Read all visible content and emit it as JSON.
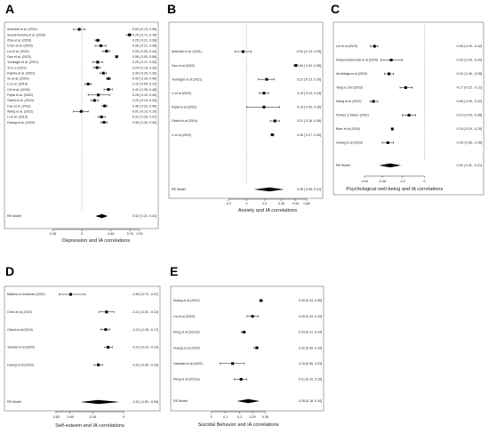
{
  "chart_data": [
    {
      "type": "forest",
      "panel": "A",
      "xlabel": "Depression and IA correlations",
      "xticks": [
        "-0.46",
        "0",
        "0.46",
        "0.76",
        "0.91"
      ],
      "studies": [
        {
          "label": "Andrade et al. (2021)",
          "est": -0.04,
          "lo": -0.13,
          "hi": 0.05,
          "ci_text": "-0.04 [-0.13, 0.05]"
        },
        {
          "label": "Souza-Pereira et al. (2020)",
          "est": 0.75,
          "lo": 0.71,
          "hi": 0.78,
          "ci_text": "0.75 [ 0.71, 0.78]"
        },
        {
          "label": "Zhai et al. (2020)",
          "est": 0.25,
          "lo": 0.21,
          "hi": 0.28,
          "ci_text": "0.25 [ 0.21, 0.28]"
        },
        {
          "label": "Chen et al. (2020)",
          "est": 0.3,
          "lo": 0.21,
          "hi": 0.38,
          "ci_text": "0.30 [ 0.21, 0.38]"
        },
        {
          "label": "Liu et al. (2021)",
          "est": 0.39,
          "lo": 0.33,
          "hi": 0.44,
          "ci_text": "0.39 [ 0.33, 0.44]"
        },
        {
          "label": "Gao et al. (2022)",
          "est": 0.55,
          "lo": 0.53,
          "hi": 0.56,
          "ci_text": "0.55 [ 0.53, 0.56]"
        },
        {
          "label": "Yundagül et al. (2021)",
          "est": 0.25,
          "lo": 0.17,
          "hi": 0.33,
          "ci_text": "0.25 [ 0.17, 0.33]"
        },
        {
          "label": "Yi & Li (2021)",
          "est": 0.24,
          "lo": 0.19,
          "hi": 0.29,
          "ci_text": "0.24 [ 0.19, 0.29]"
        },
        {
          "label": "Kojima et al. (2021)",
          "est": 0.34,
          "lo": 0.29,
          "hi": 0.39,
          "ci_text": "0.34 [ 0.29, 0.39]"
        },
        {
          "label": "Xu et al. (2020)",
          "est": 0.42,
          "lo": 0.39,
          "hi": 0.45,
          "ci_text": "0.42 [ 0.39, 0.45]"
        },
        {
          "label": "Li et al. (2019)",
          "est": 0.1,
          "lo": 0.05,
          "hi": 0.15,
          "ci_text": "0.10 [ 0.05, 0.15]"
        },
        {
          "label": "Chi et al. (2019)",
          "est": 0.42,
          "lo": 0.35,
          "hi": 0.48,
          "ci_text": "0.42 [ 0.35, 0.48]"
        },
        {
          "label": "Fujita et al. (2022)",
          "est": 0.26,
          "lo": 0.1,
          "hi": 0.44,
          "ci_text": "0.26 [ 0.10, 0.44]"
        },
        {
          "label": "Obeid et al. (2019)",
          "est": 0.2,
          "lo": 0.14,
          "hi": 0.26,
          "ci_text": "0.20 [ 0.14, 0.26]"
        },
        {
          "label": "Cao et al. (2011)",
          "est": 0.36,
          "lo": 0.32,
          "hi": 0.4,
          "ci_text": "0.36 [ 0.32, 0.40]"
        },
        {
          "label": "Wang et al. (2022)",
          "est": -0.01,
          "lo": -0.13,
          "hi": 0.1,
          "ci_text": "-0.01 [-0.13, 0.10]"
        },
        {
          "label": "Li et al. (2019)",
          "est": 0.31,
          "lo": 0.26,
          "hi": 0.37,
          "ci_text": "0.31 [ 0.26, 0.37]"
        },
        {
          "label": "Huang et al. (2023)",
          "est": 0.35,
          "lo": 0.3,
          "hi": 0.4,
          "ci_text": "0.35 [ 0.30, 0.40]"
        }
      ],
      "summary": {
        "label": "RE Model",
        "est": 0.32,
        "lo": 0.21,
        "hi": 0.41,
        "ci_text": "0.32 [ 0.21, 0.41]"
      }
    },
    {
      "type": "forest",
      "panel": "B",
      "xlabel": "Anxiety and IA correlations",
      "xticks": [
        "-0.2",
        "0",
        "0.2",
        "0.38",
        "0.54",
        "0.66"
      ],
      "studies": [
        {
          "label": "Andrade et al. (2021)",
          "est": -0.04,
          "lo": -0.13,
          "hi": 0.05,
          "ci_text": "-0.04 [-0.13, 0.05]"
        },
        {
          "label": "Gao et al (2022)",
          "est": 0.54,
          "lo": 0.52,
          "hi": 0.55,
          "ci_text": "0.54 [ 0.52, 0.55]"
        },
        {
          "label": "Yundagül et al (2021)",
          "est": 0.22,
          "lo": 0.13,
          "hi": 0.3,
          "ci_text": "0.22 [ 0.13, 0.30]"
        },
        {
          "label": "Li et al (2019)",
          "est": 0.19,
          "lo": 0.14,
          "hi": 0.24,
          "ci_text": "0.19 [ 0.14, 0.24]"
        },
        {
          "label": "Fujita et al (2022)",
          "est": 0.19,
          "lo": 0.0,
          "hi": 0.36,
          "ci_text": "0.19 [ 0.00, 0.36]"
        },
        {
          "label": "Obeid et al (2019)",
          "est": 0.31,
          "lo": 0.26,
          "hi": 0.36,
          "ci_text": "0.31 [ 0.26, 0.36]"
        },
        {
          "label": "Li et al (2019)",
          "est": 0.28,
          "lo": 0.27,
          "hi": 0.3,
          "ci_text": "0.28 [ 0.27, 0.30]"
        }
      ],
      "summary": {
        "label": "RE Model",
        "est": 0.25,
        "lo": 0.08,
        "hi": 0.41,
        "ci_text": "0.25 [ 0.08, 0.41]"
      }
    },
    {
      "type": "forest",
      "panel": "C",
      "xlabel": "Psychological well-being and IA correlations",
      "xticks": [
        "-0.54",
        "-0.38",
        "-0.2",
        "0"
      ],
      "studies": [
        {
          "label": "Liu et al (2023)",
          "est": -0.45,
          "lo": -0.49,
          "hi": -0.42,
          "ci_text": "-0.45 [-0.49, -0.42]"
        },
        {
          "label": "Khasmohammadi et al (2020)",
          "est": -0.3,
          "lo": -0.39,
          "hi": -0.2,
          "ci_text": "-0.30 [-0.39, -0.20]"
        },
        {
          "label": "Arrivillaga et al (2022)",
          "est": -0.32,
          "lo": -0.36,
          "hi": -0.28,
          "ci_text": "-0.32 [-0.36, -0.28]"
        },
        {
          "label": "Yang & Zhu (2023)",
          "est": -0.17,
          "lo": -0.22,
          "hi": -0.11,
          "ci_text": "-0.17 [-0.22, -0.11]"
        },
        {
          "label": "Wang et al (2022)",
          "est": -0.46,
          "lo": -0.49,
          "hi": -0.42,
          "ci_text": "-0.46 [-0.49, -0.42]"
        },
        {
          "label": "Pontes & Macur (2021)",
          "est": -0.14,
          "lo": -0.2,
          "hi": -0.08,
          "ci_text": "-0.14 [-0.20, -0.08]"
        },
        {
          "label": "Boer et al (2020)",
          "est": -0.29,
          "lo": -0.29,
          "hi": -0.29,
          "ci_text": "-0.29 [-0.29, -0.29]"
        },
        {
          "label": "Huang et al (2023)",
          "est": -0.33,
          "lo": -0.38,
          "hi": -0.28,
          "ci_text": "-0.33 [-0.38, -0.28]"
        }
      ],
      "summary": {
        "label": "RE Model",
        "est": -0.31,
        "lo": -0.41,
        "hi": -0.21,
        "ci_text": "-0.31 [-0.41, -0.21]"
      }
    },
    {
      "type": "forest",
      "panel": "D",
      "xlabel": "Self-esteem and IA correlations",
      "xticks": [
        "-0.83",
        "-0.66",
        "-0.38",
        "0"
      ],
      "studies": [
        {
          "label": "Mathew & Krishnan (2020)",
          "est": -0.65,
          "lo": -0.79,
          "hi": -0.47,
          "ci_text": "-0.65 [-0.79, -0.47]"
        },
        {
          "label": "Chen et al (2020)",
          "est": -0.21,
          "lo": -0.3,
          "hi": -0.12,
          "ci_text": "-0.21 [-0.30, -0.12]"
        },
        {
          "label": "Obeid et al (2019)",
          "est": -0.22,
          "lo": -0.28,
          "hi": -0.17,
          "ci_text": "-0.22 [-0.28, -0.17]"
        },
        {
          "label": "Tamanf et al (2020)",
          "est": -0.19,
          "lo": -0.23,
          "hi": -0.14,
          "ci_text": "-0.19 [-0.23, -0.14]"
        },
        {
          "label": "Huang et al (2023)",
          "est": -0.31,
          "lo": -0.36,
          "hi": -0.26,
          "ci_text": "-0.31 [-0.36, -0.26]"
        }
      ],
      "summary": {
        "label": "RE Model",
        "est": -0.31,
        "lo": -0.53,
        "hi": -0.05,
        "ci_text": "-0.31 [-0.53, -0.05]"
      }
    },
    {
      "type": "forest",
      "panel": "E",
      "xlabel": "Suicidal Behavior and IA correlations",
      "xticks": [
        "0",
        "0.1",
        "0.2",
        "0.29",
        "0.38"
      ],
      "studies": [
        {
          "label": "Kuang et al (2020)",
          "est": 0.35,
          "lo": 0.34,
          "hi": 0.36,
          "ci_text": "0.35 [0.34, 0.36]"
        },
        {
          "label": "Liu et al (2023)",
          "est": 0.29,
          "lo": 0.25,
          "hi": 0.33,
          "ci_text": "0.29 [0.25, 0.33]"
        },
        {
          "label": "Peng et al (2021)b",
          "est": 0.23,
          "lo": 0.21,
          "hi": 0.24,
          "ci_text": "0.23 [0.21, 0.24]"
        },
        {
          "label": "Huang et al (2020)",
          "est": 0.32,
          "lo": 0.3,
          "hi": 0.33,
          "ci_text": "0.32 [0.30, 0.33]"
        },
        {
          "label": "Hamdan et al (2022)",
          "est": 0.15,
          "lo": 0.06,
          "hi": 0.23,
          "ci_text": "0.15 [0.06, 0.23]"
        },
        {
          "label": "Peng et al (2021)a",
          "est": 0.21,
          "lo": 0.16,
          "hi": 0.25,
          "ci_text": "0.21 [0.16, 0.25]"
        }
      ],
      "summary": {
        "label": "RE Model",
        "est": 0.26,
        "lo": 0.18,
        "hi": 0.34,
        "ci_text": "0.26 [0.18, 0.34]"
      }
    }
  ]
}
